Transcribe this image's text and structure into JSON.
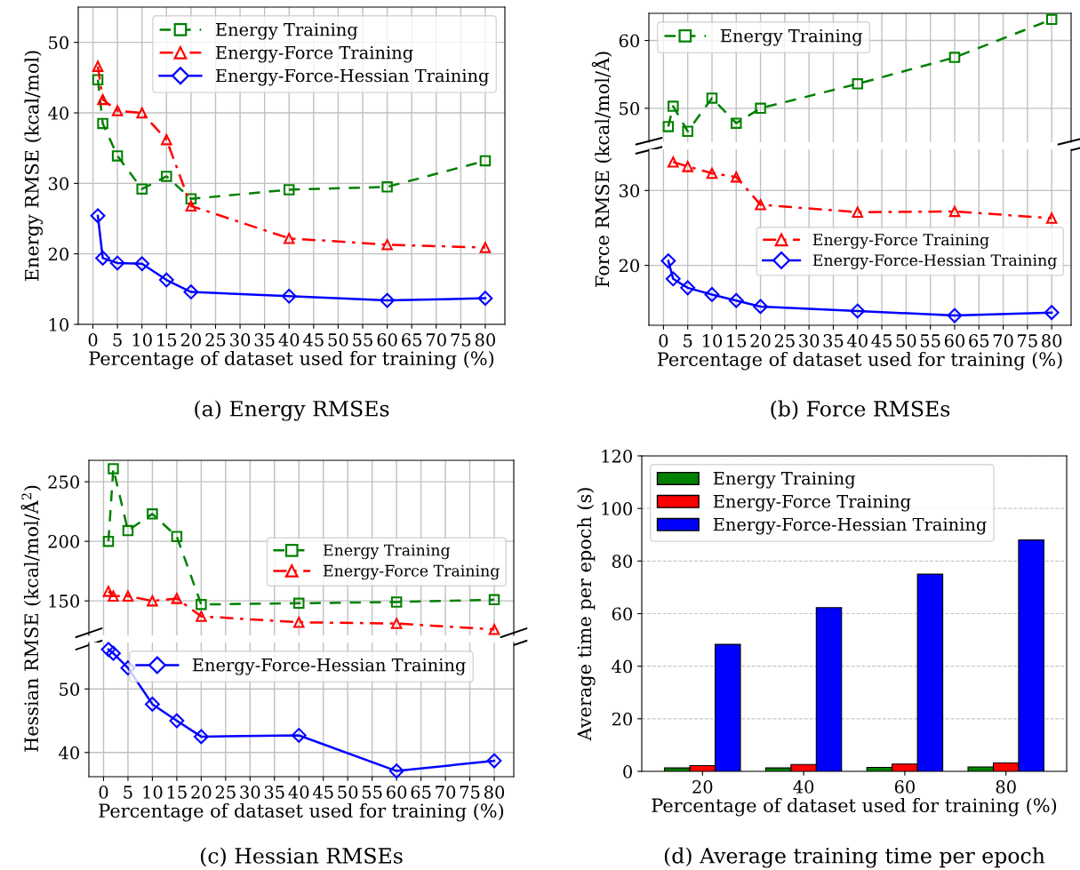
{
  "chart_data": [
    {
      "type": "line",
      "title": "(a) Energy RMSEs",
      "xlabel": "Percentage of dataset used for training (%)",
      "ylabel": "Energy RMSE (kcal/mol)",
      "x": [
        1,
        2,
        5,
        10,
        15,
        20,
        40,
        60,
        80
      ],
      "xlim": [
        -3,
        84
      ],
      "xticks": [
        0,
        5,
        10,
        15,
        20,
        25,
        30,
        35,
        40,
        45,
        50,
        55,
        60,
        65,
        70,
        75,
        80
      ],
      "ylim": [
        10,
        55
      ],
      "yticks": [
        10,
        20,
        30,
        40,
        50
      ],
      "grid": true,
      "legend": "top right",
      "series": [
        {
          "name": "Energy Training",
          "color": "#008000",
          "marker": "square",
          "line_style": "dashed",
          "values": [
            44.7,
            38.5,
            33.9,
            29.2,
            31.0,
            27.8,
            29.1,
            29.5,
            33.2
          ]
        },
        {
          "name": "Energy-Force Training",
          "color": "#ff0000",
          "marker": "triangle",
          "line_style": "dashdot",
          "values": [
            46.6,
            41.9,
            40.3,
            40.0,
            36.2,
            26.8,
            22.2,
            21.3,
            20.9
          ]
        },
        {
          "name": "Energy-Force-Hessian Training",
          "color": "#0000ff",
          "marker": "diamond",
          "line_style": "solid",
          "values": [
            25.4,
            19.4,
            18.7,
            18.6,
            16.3,
            14.6,
            14.0,
            13.4,
            13.7
          ]
        }
      ]
    },
    {
      "type": "line",
      "ylabel": "Force RMSE (kcal/mol/Å)",
      "x": [
        1,
        2,
        5,
        10,
        15,
        20,
        40,
        60,
        80
      ],
      "xlim": [
        -3,
        84
      ],
      "xticks": [
        0,
        5,
        10,
        15,
        20,
        25,
        30,
        35,
        40,
        45,
        50,
        55,
        60,
        65,
        70,
        75,
        80
      ],
      "ylim": [
        45,
        64
      ],
      "yticks": [
        50,
        60
      ],
      "grid": true,
      "legend": "top left",
      "tick_labels": "y",
      "series": [
        {
          "name": "Energy Training",
          "color": "#008000",
          "marker": "square",
          "line_style": "dashed",
          "values": [
            47.3,
            50.3,
            46.6,
            51.5,
            47.8,
            50.0,
            53.6,
            57.5,
            63.1
          ]
        }
      ]
    },
    {
      "type": "line",
      "title": "(b) Force RMSEs",
      "xlabel": "Percentage of dataset used for training (%)",
      "x": [
        1,
        2,
        5,
        10,
        15,
        20,
        40,
        60,
        80
      ],
      "xlim": [
        -3,
        84
      ],
      "xticks": [
        0,
        5,
        10,
        15,
        20,
        25,
        30,
        35,
        40,
        45,
        50,
        55,
        60,
        65,
        70,
        75,
        80
      ],
      "ylim": [
        12,
        35.5
      ],
      "yticks": [
        20,
        30
      ],
      "grid": true,
      "legend": "right",
      "series": [
        {
          "name": "Energy-Force Training",
          "color": "#ff0000",
          "marker": "triangle",
          "line_style": "dashdot",
          "values": [
            null,
            33.8,
            33.2,
            32.3,
            31.8,
            28.1,
            27.1,
            27.2,
            26.3
          ]
        },
        {
          "name": "Energy-Force-Hessian Training",
          "color": "#0000ff",
          "marker": "diamond",
          "line_style": "solid",
          "values": [
            20.6,
            18.2,
            17.0,
            16.1,
            15.3,
            14.5,
            13.9,
            13.3,
            13.7
          ]
        }
      ]
    },
    {
      "type": "line",
      "ylabel": "Hessian RMSE (kcal/mol/Å$^{2}$)",
      "x": [
        1,
        2,
        5,
        10,
        15,
        20,
        40,
        60,
        80
      ],
      "xlim": [
        -3,
        84
      ],
      "xticks": [
        0,
        5,
        10,
        15,
        20,
        25,
        30,
        35,
        40,
        45,
        50,
        55,
        60,
        65,
        70,
        75,
        80
      ],
      "ylim": [
        121,
        268
      ],
      "yticks": [
        150,
        200,
        250
      ],
      "grid": true,
      "tick_labels": "y",
      "legend": "right",
      "series": [
        {
          "name": "Energy Training",
          "color": "#008000",
          "marker": "square",
          "line_style": "dashed",
          "values": [
            200,
            261,
            209,
            223,
            204,
            147,
            148,
            149,
            151
          ]
        },
        {
          "name": "Energy-Force Training",
          "color": "#ff0000",
          "marker": "triangle",
          "line_style": "dashdot",
          "values": [
            158,
            154,
            154,
            150,
            152,
            137,
            132,
            131,
            126
          ]
        }
      ]
    },
    {
      "type": "line",
      "title": "(c) Hessian RMSEs",
      "xlabel": "Percentage of dataset used for training (%)",
      "x": [
        1,
        2,
        5,
        10,
        15,
        20,
        40,
        60,
        80
      ],
      "xlim": [
        -3,
        84
      ],
      "xticks": [
        0,
        5,
        10,
        15,
        20,
        25,
        30,
        35,
        40,
        45,
        50,
        55,
        60,
        65,
        70,
        75,
        80
      ],
      "ylim": [
        36.2,
        57.3
      ],
      "yticks": [
        40,
        50
      ],
      "grid": true,
      "legend": "top",
      "series": [
        {
          "name": "Energy-Force-Hessian Training",
          "color": "#0000ff",
          "marker": "diamond",
          "line_style": "solid",
          "values": [
            56.2,
            55.6,
            53.3,
            47.6,
            45.0,
            42.5,
            42.7,
            37.1,
            38.7
          ]
        }
      ]
    },
    {
      "type": "bar",
      "title": "(d) Average training time per epoch",
      "xlabel": "Percentage of dataset used for training (%)",
      "ylabel": "Average time per epoch (s)",
      "categories": [
        "20",
        "40",
        "60",
        "80"
      ],
      "ylim": [
        0,
        120
      ],
      "yticks": [
        0,
        20,
        40,
        60,
        80,
        100,
        120
      ],
      "grid": "y",
      "legend": "top left",
      "series": [
        {
          "name": "Energy Training",
          "color": "#008000",
          "values": [
            1.3,
            1.3,
            1.5,
            1.7
          ]
        },
        {
          "name": "Energy-Force Training",
          "color": "#ff0000",
          "values": [
            2.2,
            2.6,
            2.8,
            3.2
          ]
        },
        {
          "name": "Energy-Force-Hessian Training",
          "color": "#0000ff",
          "values": [
            48.3,
            62.3,
            75.0,
            88.0
          ]
        }
      ]
    }
  ]
}
